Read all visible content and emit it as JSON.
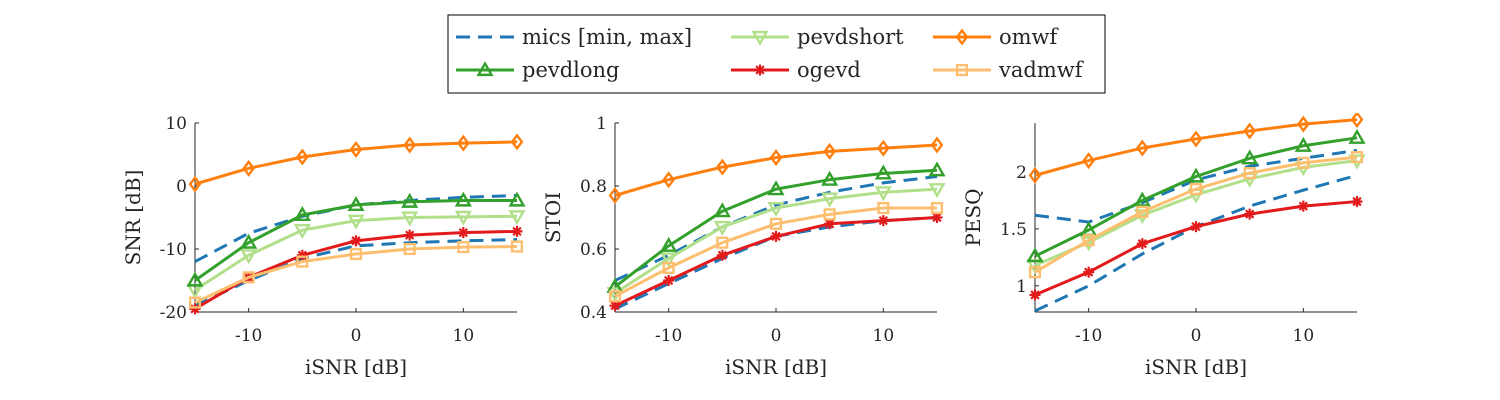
{
  "legend": {
    "position": "top-center",
    "entries": [
      {
        "key": "mics",
        "label": "mics [min, max]",
        "color": "#1f77b4",
        "marker": "none",
        "dashed": true
      },
      {
        "key": "pevdshort",
        "label": "pevdshort",
        "color": "#b2df8a",
        "marker": "triangle-down",
        "dashed": false
      },
      {
        "key": "omwf",
        "label": "omwf",
        "color": "#ff7f0e",
        "marker": "diamond",
        "dashed": false
      },
      {
        "key": "pevdlong",
        "label": "pevdlong",
        "color": "#33a02c",
        "marker": "triangle-up",
        "dashed": false
      },
      {
        "key": "ogevd",
        "label": "ogevd",
        "color": "#e31a1c",
        "marker": "asterisk",
        "dashed": false
      },
      {
        "key": "vadmwf",
        "label": "vadmwf",
        "color": "#fdbf6f",
        "marker": "square",
        "dashed": false
      }
    ]
  },
  "chart_data": [
    {
      "type": "line",
      "xlabel": "iSNR [dB]",
      "ylabel": "SNR [dB]",
      "x": [
        -15,
        -10,
        -5,
        0,
        5,
        10,
        15
      ],
      "xlim": [
        -15,
        15
      ],
      "ylim": [
        -20,
        10
      ],
      "xticks": [
        -10,
        0,
        10
      ],
      "yticks": [
        -20,
        -10,
        0,
        10
      ],
      "grid": false,
      "series": [
        {
          "name": "mics [min, max]",
          "key": "mics",
          "values": [
            -12,
            -7.5,
            -4.8,
            -3.0,
            -2.3,
            -1.8,
            -1.5
          ]
        },
        {
          "name": "mics [min, max]",
          "key": "mics",
          "values": [
            -19,
            -15,
            -11.5,
            -9.5,
            -9.0,
            -8.7,
            -8.5
          ]
        },
        {
          "name": "pevdshort",
          "key": "pevdshort",
          "values": [
            -16.5,
            -11,
            -7,
            -5.5,
            -5.0,
            -4.9,
            -4.8
          ]
        },
        {
          "name": "omwf",
          "key": "omwf",
          "values": [
            0.3,
            2.8,
            4.6,
            5.8,
            6.5,
            6.8,
            7.0
          ]
        },
        {
          "name": "pevdlong",
          "key": "pevdlong",
          "values": [
            -15,
            -9,
            -4.6,
            -3.0,
            -2.5,
            -2.3,
            -2.3
          ]
        },
        {
          "name": "ogevd",
          "key": "ogevd",
          "values": [
            -19.5,
            -14.5,
            -11,
            -8.7,
            -7.8,
            -7.4,
            -7.2
          ]
        },
        {
          "name": "vadmwf",
          "key": "vadmwf",
          "values": [
            -18.5,
            -14.5,
            -12,
            -10.8,
            -10,
            -9.7,
            -9.6
          ]
        }
      ]
    },
    {
      "type": "line",
      "xlabel": "iSNR [dB]",
      "ylabel": "STOI",
      "x": [
        -15,
        -10,
        -5,
        0,
        5,
        10,
        15
      ],
      "xlim": [
        -15,
        15
      ],
      "ylim": [
        0.4,
        1
      ],
      "xticks": [
        -10,
        0,
        10
      ],
      "yticks": [
        0.4,
        0.6,
        0.8,
        1
      ],
      "grid": false,
      "series": [
        {
          "name": "mics [min, max]",
          "key": "mics",
          "values": [
            0.5,
            0.58,
            0.67,
            0.74,
            0.78,
            0.81,
            0.83
          ]
        },
        {
          "name": "mics [min, max]",
          "key": "mics",
          "values": [
            0.41,
            0.49,
            0.57,
            0.64,
            0.67,
            0.69,
            0.7
          ]
        },
        {
          "name": "pevdshort",
          "key": "pevdshort",
          "values": [
            0.46,
            0.57,
            0.67,
            0.73,
            0.76,
            0.78,
            0.79
          ]
        },
        {
          "name": "omwf",
          "key": "omwf",
          "values": [
            0.77,
            0.82,
            0.86,
            0.89,
            0.91,
            0.92,
            0.93
          ]
        },
        {
          "name": "pevdlong",
          "key": "pevdlong",
          "values": [
            0.48,
            0.61,
            0.72,
            0.79,
            0.82,
            0.84,
            0.85
          ]
        },
        {
          "name": "ogevd",
          "key": "ogevd",
          "values": [
            0.42,
            0.5,
            0.58,
            0.64,
            0.68,
            0.69,
            0.7
          ]
        },
        {
          "name": "vadmwf",
          "key": "vadmwf",
          "values": [
            0.45,
            0.54,
            0.62,
            0.68,
            0.71,
            0.73,
            0.73
          ]
        }
      ]
    },
    {
      "type": "line",
      "xlabel": "iSNR [dB]",
      "ylabel": "PESQ",
      "x": [
        -15,
        -10,
        -5,
        0,
        5,
        10,
        15
      ],
      "xlim": [
        -15,
        15
      ],
      "ylim": [
        0.77,
        2.43
      ],
      "xticks": [
        -10,
        0,
        10
      ],
      "yticks": [
        1,
        1.5,
        2
      ],
      "grid": false,
      "series": [
        {
          "name": "mics [min, max]",
          "key": "mics",
          "values": [
            1.62,
            1.56,
            1.73,
            1.93,
            2.05,
            2.12,
            2.19
          ]
        },
        {
          "name": "mics [min, max]",
          "key": "mics",
          "values": [
            0.78,
            1.0,
            1.28,
            1.52,
            1.7,
            1.84,
            1.97
          ]
        },
        {
          "name": "pevdshort",
          "key": "pevdshort",
          "values": [
            1.18,
            1.38,
            1.62,
            1.8,
            1.94,
            2.04,
            2.1
          ]
        },
        {
          "name": "omwf",
          "key": "omwf",
          "values": [
            1.97,
            2.1,
            2.21,
            2.29,
            2.36,
            2.42,
            2.46
          ]
        },
        {
          "name": "pevdlong",
          "key": "pevdlong",
          "values": [
            1.26,
            1.49,
            1.75,
            1.96,
            2.12,
            2.23,
            2.3
          ]
        },
        {
          "name": "ogevd",
          "key": "ogevd",
          "values": [
            0.92,
            1.12,
            1.37,
            1.52,
            1.63,
            1.7,
            1.74
          ]
        },
        {
          "name": "vadmwf",
          "key": "vadmwf",
          "values": [
            1.12,
            1.4,
            1.65,
            1.85,
            1.99,
            2.08,
            2.13
          ]
        }
      ]
    }
  ]
}
